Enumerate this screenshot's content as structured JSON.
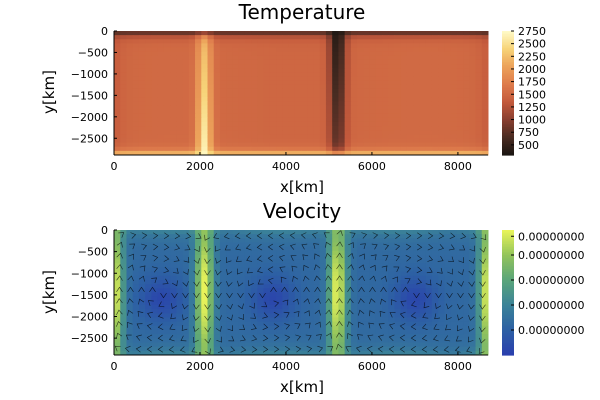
{
  "chart_data": [
    {
      "type": "heatmap",
      "title": "Temperature",
      "xlabel": "x[km]",
      "ylabel": "y[km]",
      "xlim": [
        0,
        8700
      ],
      "ylim": [
        -2890,
        0
      ],
      "x_ticks": [
        0,
        2000,
        4000,
        6000,
        8000
      ],
      "x_tick_labels": [
        "0",
        "2000",
        "4000",
        "6000",
        "8000"
      ],
      "y_ticks": [
        0,
        -500,
        -1000,
        -1500,
        -2000,
        -2500
      ],
      "y_tick_labels": [
        "0",
        "−500",
        "−1000",
        "−1500",
        "−2000",
        "−2500"
      ],
      "colorbar": {
        "colormap": "lajolla-like",
        "colors": [
          "#1a1511",
          "#4a2c22",
          "#8a3f30",
          "#c45a3c",
          "#de7c4c",
          "#eca25a",
          "#f7d479",
          "#fffbc9"
        ],
        "range": [
          300,
          2750
        ],
        "ticks": [
          500,
          750,
          1000,
          1250,
          1500,
          1750,
          2000,
          2250,
          2500,
          2750
        ],
        "tick_labels": [
          "500",
          "750",
          "1000",
          "1250",
          "1500",
          "1750",
          "2000",
          "2250",
          "2500",
          "2750"
        ]
      },
      "field": {
        "surface_temperature": 300,
        "bottom_temperature": 2750,
        "interior_temperature": 1500,
        "upwelling_x": 2100,
        "downwelling_x": 5200
      },
      "grid": false,
      "legend": "colorbar-right"
    },
    {
      "type": "heatmap",
      "title": "Velocity",
      "xlabel": "x[km]",
      "ylabel": "y[km]",
      "xlim": [
        0,
        8700
      ],
      "ylim": [
        -2890,
        0
      ],
      "x_ticks": [
        0,
        2000,
        4000,
        6000,
        8000
      ],
      "x_tick_labels": [
        "0",
        "2000",
        "4000",
        "6000",
        "8000"
      ],
      "y_ticks": [
        0,
        -500,
        -1000,
        -1500,
        -2000,
        -2500
      ],
      "y_tick_labels": [
        "0",
        "−500",
        "−1000",
        "−1500",
        "−2000",
        "−2500"
      ],
      "colorbar": {
        "colormap": "viridis-like",
        "colors": [
          "#2a3fae",
          "#2d60a4",
          "#3b8398",
          "#5aa57a",
          "#93c45b",
          "#eaf45a"
        ],
        "ticks": [
          0.2,
          0.4,
          0.6,
          0.8,
          0.95
        ],
        "tick_labels": [
          "0.00000000",
          "0.00000000",
          "0.00000000",
          "0.00000000",
          "0.00000000"
        ]
      },
      "arrows": {
        "shown": true,
        "color": "#000000"
      },
      "field": {
        "cell_centers_x": [
          1100,
          3700,
          7000
        ],
        "max_speed_x": [
          0,
          2100,
          5200,
          8700
        ]
      },
      "grid": false,
      "legend": "colorbar-right"
    }
  ]
}
